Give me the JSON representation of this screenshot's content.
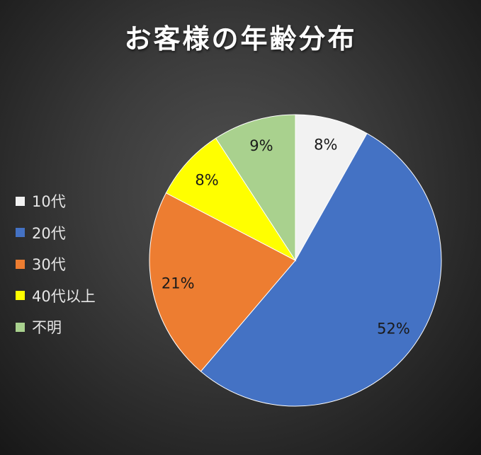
{
  "chart_data": {
    "type": "pie",
    "title": "お客様の年齢分布",
    "legend_position": "left",
    "slices": [
      {
        "label": "10代",
        "value": 8,
        "display": "8%",
        "color": "#f2f2f2"
      },
      {
        "label": "20代",
        "value": 52,
        "display": "52%",
        "color": "#4472c4"
      },
      {
        "label": "30代",
        "value": 21,
        "display": "21%",
        "color": "#ed7d31"
      },
      {
        "label": "40代以上",
        "value": 8,
        "display": "8%",
        "color": "#ffff00"
      },
      {
        "label": "不明",
        "value": 9,
        "display": "9%",
        "color": "#a9d18e"
      }
    ]
  },
  "colors": {
    "background_center": "#505050",
    "background_edge": "#151515",
    "title": "#ffffff",
    "legend_text": "#e6e6e6",
    "slice_label": "#1a1a1a"
  }
}
